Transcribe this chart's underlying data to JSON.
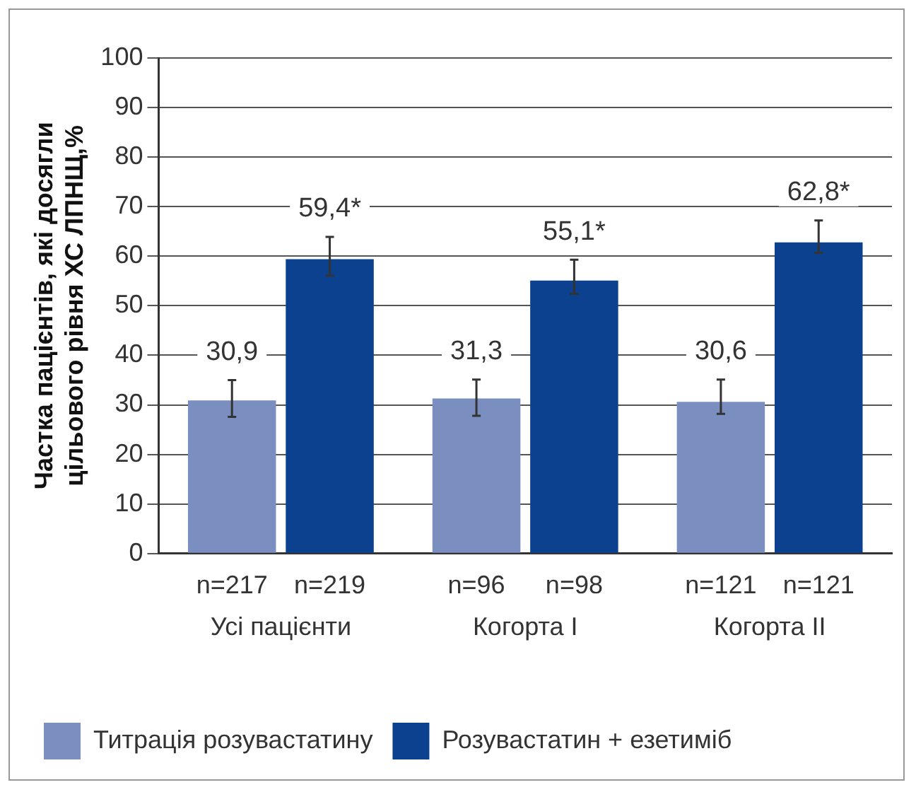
{
  "chart_data": {
    "type": "bar",
    "ylabel": "Частка пацієнтів, які досягли цільового рівня ХС ЛПНЩ,%",
    "categories": [
      "Усі пацієнти",
      "Когорта I",
      "Когорта II"
    ],
    "series": [
      {
        "name": "Титрація розувастатину",
        "color": "#7b8ec0",
        "values": [
          30.9,
          31.3,
          30.6
        ],
        "value_labels": [
          "30,9",
          "31,3",
          "30,6"
        ],
        "errors": [
          [
            27.6,
            35.0
          ],
          [
            27.8,
            35.1
          ],
          [
            28.2,
            35.1
          ]
        ]
      },
      {
        "name": "Розувастатин + езетиміб",
        "color": "#0b418e",
        "values": [
          59.4,
          55.1,
          62.8
        ],
        "value_labels": [
          "59,4*",
          "55,1*",
          "62,8*"
        ],
        "errors": [
          [
            56.1,
            63.9
          ],
          [
            52.4,
            59.3
          ],
          [
            60.7,
            67.2
          ]
        ]
      }
    ],
    "annotations": [
      "n=217",
      "n=219",
      "n=96",
      "n=98",
      "n=121",
      "n=121"
    ],
    "ylim": [
      0,
      100
    ],
    "yticks": [
      0,
      10,
      20,
      30,
      40,
      50,
      60,
      70,
      80,
      90,
      100
    ],
    "grid": "y",
    "legend": "bottom"
  }
}
